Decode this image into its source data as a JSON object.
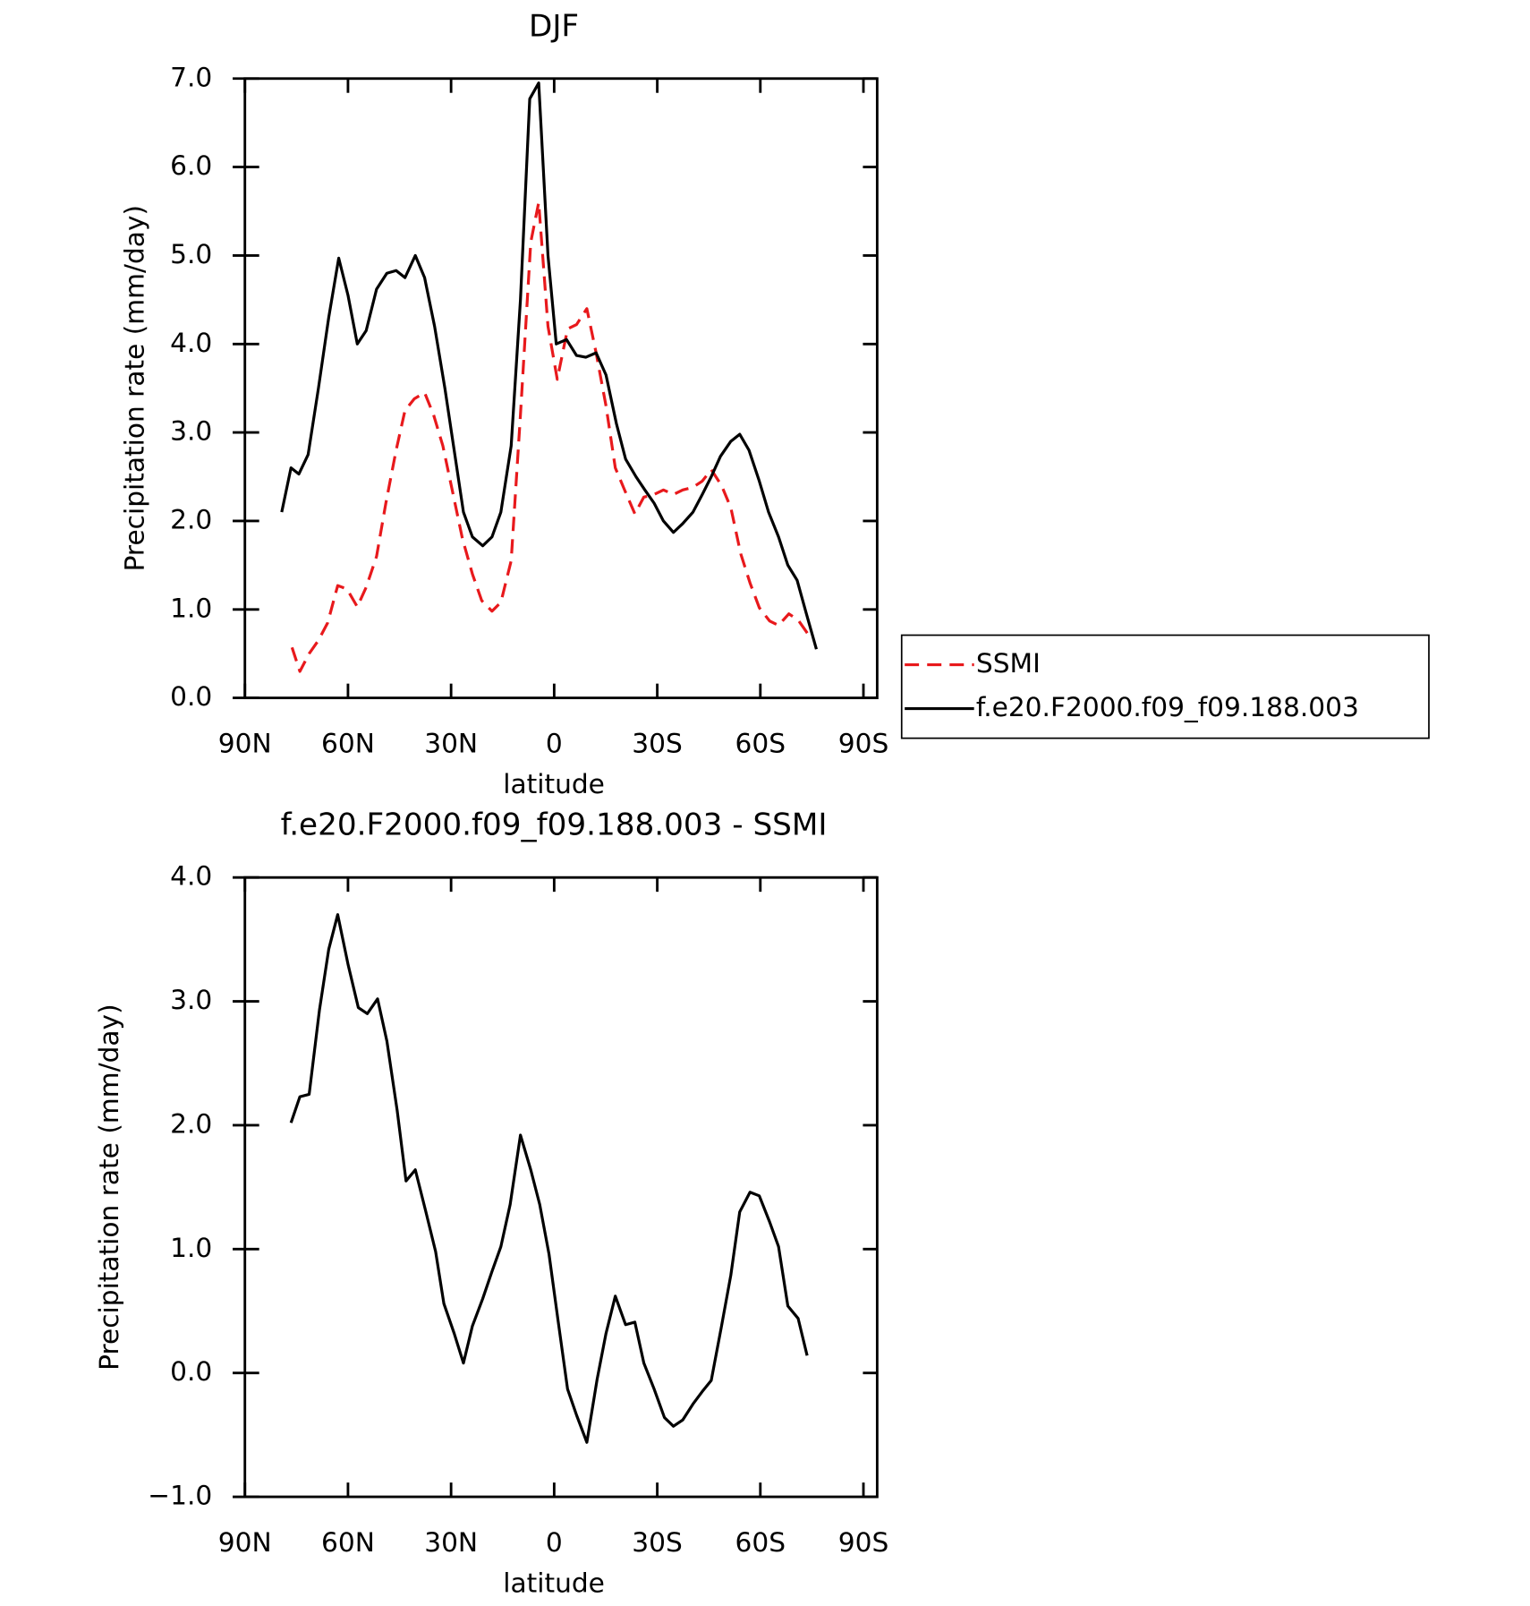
{
  "chart_data": [
    {
      "type": "line",
      "title": "DJF",
      "xlabel": "latitude",
      "ylabel": "Precipitation rate (mm/day)",
      "xlim": [
        90,
        -94
      ],
      "ylim": [
        0,
        7
      ],
      "xticks": [
        {
          "value": 90,
          "label": "90N"
        },
        {
          "value": 60,
          "label": "60N"
        },
        {
          "value": 30,
          "label": "30N"
        },
        0,
        {
          "value": -30,
          "label": "30S"
        },
        {
          "value": -60,
          "label": "60S"
        },
        {
          "value": -90,
          "label": "90S"
        }
      ],
      "yticks": [
        {
          "value": 0,
          "label": "0.0"
        },
        {
          "value": 1,
          "label": "1.0"
        },
        {
          "value": 2,
          "label": "2.0"
        },
        {
          "value": 3,
          "label": "3.0"
        },
        {
          "value": 4,
          "label": "4.0"
        },
        {
          "value": 5,
          "label": "5.0"
        },
        {
          "value": 6,
          "label": "6.0"
        },
        {
          "value": 7,
          "label": "7.0"
        }
      ],
      "legend": "right",
      "series": [
        {
          "name": "SSMI",
          "color": "#e8191c",
          "dashed": true,
          "x": [
            76.3,
            74.0,
            71.3,
            68.6,
            65.9,
            63.0,
            60.3,
            57.3,
            54.7,
            51.7,
            49.0,
            46.0,
            43.4,
            40.7,
            37.7,
            35.1,
            32.4,
            29.4,
            26.7,
            23.8,
            21.1,
            18.1,
            15.5,
            12.5,
            9.8,
            6.8,
            4.5,
            1.8,
            -0.9,
            -3.9,
            -6.5,
            -9.5,
            -12.2,
            -15.1,
            -17.8,
            -20.5,
            -23.5,
            -26.1,
            -29.1,
            -31.8,
            -34.7,
            -37.4,
            -40.4,
            -43.1,
            -45.7,
            -48.7,
            -51.4,
            -54.3,
            -57.0,
            -59.7,
            -62.7,
            -65.3,
            -68.3,
            -71.0,
            -73.9
          ],
          "values": [
            0.57,
            0.3,
            0.5,
            0.65,
            0.85,
            1.27,
            1.23,
            1.03,
            1.25,
            1.6,
            2.2,
            2.8,
            3.25,
            3.38,
            3.45,
            3.2,
            2.85,
            2.3,
            1.8,
            1.4,
            1.1,
            0.98,
            1.08,
            1.55,
            3.2,
            5.15,
            5.6,
            4.2,
            3.6,
            4.17,
            4.22,
            4.4,
            3.9,
            3.3,
            2.6,
            2.35,
            2.08,
            2.27,
            2.3,
            2.35,
            2.3,
            2.35,
            2.38,
            2.45,
            2.58,
            2.4,
            2.15,
            1.63,
            1.3,
            1.02,
            0.87,
            0.82,
            0.95,
            0.88,
            0.72
          ]
        },
        {
          "name": "f.e20.F2000.f09_f09.188.003",
          "color": "#000000",
          "dashed": false,
          "x": [
            79.3,
            76.6,
            74.3,
            71.6,
            68.6,
            65.6,
            62.7,
            60.0,
            57.3,
            54.7,
            51.7,
            48.7,
            46.0,
            43.4,
            40.4,
            37.7,
            34.8,
            31.8,
            29.1,
            26.4,
            23.8,
            20.8,
            18.1,
            15.5,
            12.5,
            9.8,
            7.1,
            4.5,
            1.8,
            -0.6,
            -3.6,
            -6.5,
            -9.2,
            -12.2,
            -15.1,
            -18.1,
            -20.8,
            -23.8,
            -26.4,
            -29.1,
            -31.8,
            -34.7,
            -37.4,
            -40.4,
            -43.1,
            -45.7,
            -48.4,
            -51.4,
            -54.0,
            -56.7,
            -59.7,
            -62.4,
            -65.3,
            -68.0,
            -70.7,
            -73.4,
            -76.3
          ],
          "values": [
            2.1,
            2.6,
            2.53,
            2.75,
            3.5,
            4.3,
            4.97,
            4.55,
            4.0,
            4.15,
            4.62,
            4.8,
            4.83,
            4.75,
            5.0,
            4.75,
            4.2,
            3.5,
            2.8,
            2.1,
            1.82,
            1.72,
            1.82,
            2.1,
            2.85,
            4.5,
            6.77,
            6.95,
            5.0,
            4.0,
            4.05,
            3.87,
            3.85,
            3.9,
            3.65,
            3.1,
            2.7,
            2.5,
            2.35,
            2.2,
            2.0,
            1.87,
            1.97,
            2.1,
            2.3,
            2.5,
            2.73,
            2.9,
            2.98,
            2.8,
            2.45,
            2.1,
            1.82,
            1.5,
            1.33,
            0.95,
            0.55
          ]
        }
      ]
    },
    {
      "type": "line",
      "title": "f.e20.F2000.f09_f09.188.003 - SSMI",
      "xlabel": "latitude",
      "ylabel": "Precipitation rate (mm/day)",
      "xlim": [
        90,
        -94
      ],
      "ylim": [
        -1,
        4
      ],
      "xticks": [
        {
          "value": 90,
          "label": "90N"
        },
        {
          "value": 60,
          "label": "60N"
        },
        {
          "value": 30,
          "label": "30N"
        },
        0,
        {
          "value": -30,
          "label": "30S"
        },
        {
          "value": -60,
          "label": "60S"
        },
        {
          "value": -90,
          "label": "90S"
        }
      ],
      "yticks": [
        {
          "value": -1,
          "label": "−1.0"
        },
        {
          "value": 0,
          "label": "0.0"
        },
        {
          "value": 1,
          "label": "1.0"
        },
        {
          "value": 2,
          "label": "2.0"
        },
        {
          "value": 3,
          "label": "3.0"
        },
        {
          "value": 4,
          "label": "4.0"
        }
      ],
      "series": [
        {
          "color": "#000000",
          "dashed": false,
          "x": [
            76.6,
            74.0,
            71.3,
            68.3,
            65.6,
            63.0,
            60.0,
            57.0,
            54.4,
            51.4,
            48.7,
            45.7,
            43.1,
            40.4,
            37.4,
            34.5,
            32.1,
            29.1,
            26.4,
            23.8,
            20.8,
            18.1,
            15.5,
            12.8,
            9.8,
            6.8,
            4.2,
            1.5,
            -1.2,
            -3.9,
            -6.5,
            -9.5,
            -12.5,
            -15.1,
            -17.8,
            -20.8,
            -23.5,
            -26.1,
            -29.1,
            -32.1,
            -34.7,
            -37.4,
            -40.4,
            -43.1,
            -45.7,
            -48.7,
            -51.4,
            -54.0,
            -57.0,
            -59.7,
            -62.7,
            -65.3,
            -68.0,
            -71.0,
            -73.6
          ],
          "values": [
            2.02,
            2.23,
            2.25,
            2.93,
            3.42,
            3.7,
            3.3,
            2.95,
            2.9,
            3.02,
            2.68,
            2.12,
            1.55,
            1.64,
            1.31,
            0.98,
            0.56,
            0.32,
            0.08,
            0.38,
            0.6,
            0.82,
            1.02,
            1.36,
            1.92,
            1.64,
            1.36,
            0.96,
            0.41,
            -0.13,
            -0.34,
            -0.56,
            -0.05,
            0.32,
            0.62,
            0.39,
            0.41,
            0.08,
            -0.13,
            -0.36,
            -0.43,
            -0.38,
            -0.25,
            -0.15,
            -0.06,
            0.38,
            0.79,
            1.3,
            1.46,
            1.43,
            1.22,
            1.02,
            0.54,
            0.44,
            0.14
          ]
        }
      ]
    }
  ]
}
